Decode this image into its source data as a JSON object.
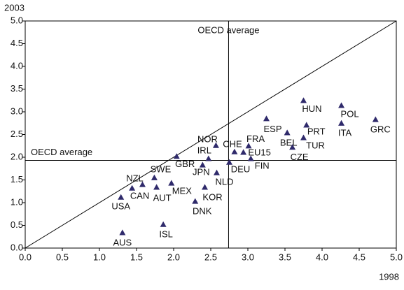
{
  "chart_data": {
    "type": "scatter",
    "x_label": "1998",
    "y_label": "2003",
    "color": "#2f2a6b",
    "xlim": [
      0,
      5
    ],
    "ylim": [
      0,
      5
    ],
    "xticks": [
      {
        "value": 0,
        "label": "0.0"
      },
      0.5,
      {
        "value": 1,
        "label": "1.0"
      },
      1.5,
      {
        "value": 2,
        "label": "2.0"
      },
      2.5,
      {
        "value": 3,
        "label": "3.0"
      },
      3.5,
      {
        "value": 4,
        "label": "4.0"
      },
      4.5,
      {
        "value": 5,
        "label": "5.0"
      }
    ],
    "yticks": [
      {
        "value": 0,
        "label": "0.0"
      },
      0.5,
      {
        "value": 1,
        "label": "1.0"
      },
      1.5,
      {
        "value": 2,
        "label": "2.0"
      },
      2.5,
      {
        "value": 3,
        "label": "3.0"
      },
      3.5,
      {
        "value": 4,
        "label": "4.0"
      },
      4.5,
      {
        "value": 5,
        "label": "5.0"
      }
    ],
    "diagonal": true,
    "reference_lines": [
      {
        "axis": "x",
        "value": 2.74,
        "label": "OECD average"
      },
      {
        "axis": "y",
        "value": 1.93,
        "label": "OECD average"
      }
    ],
    "labels": [
      "AUS",
      "ISL",
      "USA",
      "CAN",
      "NZL",
      "SWE",
      "AUT",
      "MEX",
      "GBR",
      "DNK",
      "KOR",
      "JPN",
      "IRL",
      "NOR",
      "NLD",
      "CHE",
      "DEU",
      "EU15",
      "FRA",
      "FIN",
      "ESP",
      "BEL",
      "CZE",
      "TUR",
      "PRT",
      "HUN",
      "ITA",
      "POL",
      "GRC"
    ],
    "x": [
      1.31,
      1.86,
      1.29,
      1.44,
      1.58,
      1.74,
      1.77,
      1.97,
      2.04,
      2.29,
      2.42,
      2.39,
      2.47,
      2.57,
      2.58,
      2.82,
      2.75,
      2.94,
      3.01,
      3.04,
      3.25,
      3.53,
      3.6,
      3.75,
      3.79,
      3.75,
      4.26,
      4.26,
      4.72
    ],
    "y": [
      0.34,
      0.52,
      1.12,
      1.32,
      1.4,
      1.55,
      1.34,
      1.43,
      2.02,
      1.03,
      1.34,
      1.83,
      1.97,
      2.26,
      1.66,
      2.12,
      1.89,
      2.11,
      2.25,
      1.97,
      2.85,
      2.54,
      2.22,
      2.43,
      2.71,
      3.25,
      2.75,
      3.14,
      2.83
    ]
  }
}
